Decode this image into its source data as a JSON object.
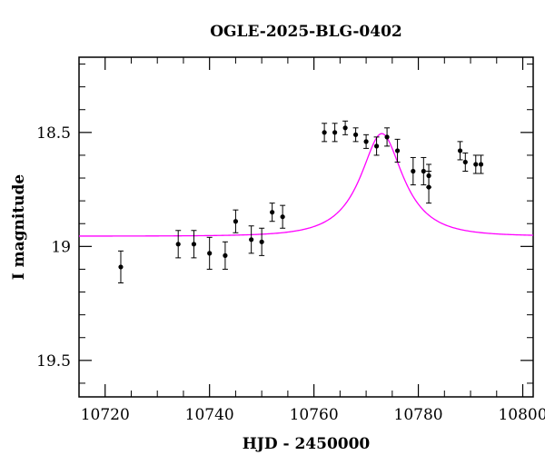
{
  "chart_data": {
    "type": "scatter",
    "title": "OGLE-2025-BLG-0402",
    "xlabel": "HJD - 2450000",
    "ylabel": "I magnitude",
    "xlim": [
      10715,
      10802
    ],
    "ylim": [
      19.66,
      18.17
    ],
    "y_inverted": true,
    "grid": false,
    "x_ticks_major": [
      10720,
      10740,
      10760,
      10780,
      10800
    ],
    "x_ticks_minor": [
      10725,
      10730,
      10735,
      10745,
      10750,
      10755,
      10765,
      10770,
      10775,
      10785,
      10790,
      10795
    ],
    "y_ticks_major": [
      18.5,
      19,
      19.5
    ],
    "x_tick_labels": [
      "10720",
      "10740",
      "10760",
      "10780",
      "10800"
    ],
    "y_tick_labels": [
      "18.5",
      "19",
      "19.5"
    ],
    "colors": {
      "points": "#000000",
      "model": "#ff00ff",
      "axes": "#000000"
    },
    "series": [
      {
        "type": "scatter-errorbar",
        "points": [
          {
            "x": 10723.0,
            "y": 19.09,
            "err": 0.07
          },
          {
            "x": 10734.0,
            "y": 18.99,
            "err": 0.06
          },
          {
            "x": 10737.0,
            "y": 18.99,
            "err": 0.06
          },
          {
            "x": 10740.0,
            "y": 19.03,
            "err": 0.07
          },
          {
            "x": 10743.0,
            "y": 19.04,
            "err": 0.06
          },
          {
            "x": 10745.0,
            "y": 18.89,
            "err": 0.05
          },
          {
            "x": 10748.0,
            "y": 18.97,
            "err": 0.06
          },
          {
            "x": 10750.0,
            "y": 18.98,
            "err": 0.06
          },
          {
            "x": 10752.0,
            "y": 18.85,
            "err": 0.04
          },
          {
            "x": 10754.0,
            "y": 18.87,
            "err": 0.05
          },
          {
            "x": 10762.0,
            "y": 18.5,
            "err": 0.04
          },
          {
            "x": 10764.0,
            "y": 18.5,
            "err": 0.04
          },
          {
            "x": 10766.0,
            "y": 18.48,
            "err": 0.03
          },
          {
            "x": 10768.0,
            "y": 18.51,
            "err": 0.03
          },
          {
            "x": 10770.0,
            "y": 18.54,
            "err": 0.03
          },
          {
            "x": 10772.0,
            "y": 18.56,
            "err": 0.04
          },
          {
            "x": 10774.0,
            "y": 18.52,
            "err": 0.04
          },
          {
            "x": 10776.0,
            "y": 18.58,
            "err": 0.05
          },
          {
            "x": 10779.0,
            "y": 18.67,
            "err": 0.06
          },
          {
            "x": 10781.0,
            "y": 18.67,
            "err": 0.06
          },
          {
            "x": 10782.0,
            "y": 18.69,
            "err": 0.05
          },
          {
            "x": 10782.0,
            "y": 18.74,
            "err": 0.07
          },
          {
            "x": 10788.0,
            "y": 18.58,
            "err": 0.04
          },
          {
            "x": 10789.0,
            "y": 18.63,
            "err": 0.04
          },
          {
            "x": 10791.0,
            "y": 18.64,
            "err": 0.04
          },
          {
            "x": 10792.0,
            "y": 18.64,
            "err": 0.04
          }
        ]
      },
      {
        "type": "line",
        "model": {
          "baseline": 18.955,
          "peak": 18.505,
          "t0": 10773.0,
          "tE": 8.5
        }
      }
    ]
  }
}
